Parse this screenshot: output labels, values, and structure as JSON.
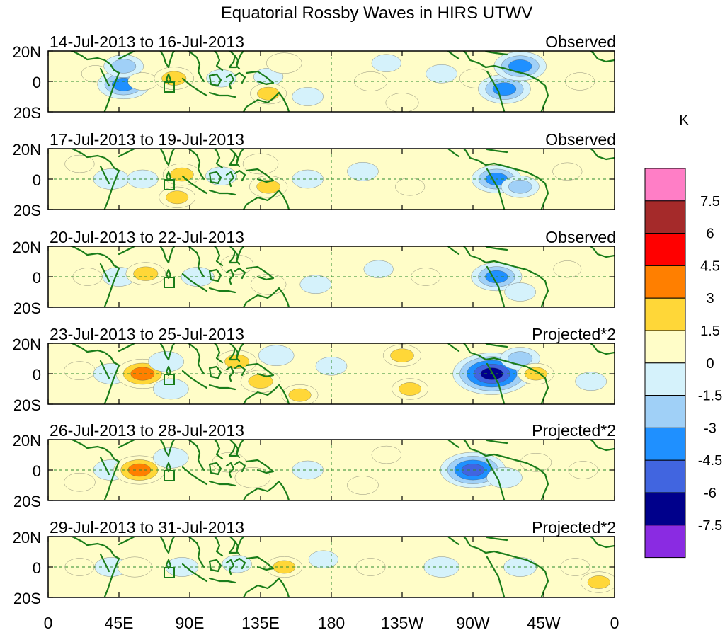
{
  "title": "Equatorial Rossby Waves in HIRS UTWV",
  "chart_data": {
    "type": "heatmap",
    "title": "Equatorial Rossby Waves in HIRS UTWV",
    "x_ticks": [
      "0",
      "45E",
      "90E",
      "135E",
      "180",
      "135W",
      "90W",
      "45W",
      "0"
    ],
    "y_ticks": [
      "20N",
      "0",
      "20S"
    ],
    "lat_range": [
      -20,
      20
    ],
    "lon_range": [
      0,
      360
    ],
    "colorbar": {
      "unit": "K",
      "levels": [
        "7.5",
        "6",
        "4.5",
        "3",
        "1.5",
        "0",
        "-1.5",
        "-3",
        "-4.5",
        "-6",
        "-7.5"
      ],
      "colors": [
        "#ff7ec6",
        "#a52a2a",
        "#ff0000",
        "#ff7f00",
        "#ffd738",
        "#fffdc8",
        "#d5f2fb",
        "#a0d0f7",
        "#1f90ff",
        "#4165e0",
        "#00008b",
        "#8a2be2"
      ]
    },
    "panels": [
      {
        "date_range": "14-Jul-2013 to 16-Jul-2013",
        "label": "Observed",
        "anomalies": [
          {
            "lon": 30,
            "lat": 5,
            "value": 0.6
          },
          {
            "lon": 48,
            "lat": -2,
            "value": -3.5
          },
          {
            "lon": 48,
            "lat": 10,
            "value": -2
          },
          {
            "lon": 60,
            "lat": 0,
            "value": 0.8
          },
          {
            "lon": 80,
            "lat": 2,
            "value": 2
          },
          {
            "lon": 110,
            "lat": 2,
            "value": -0.8
          },
          {
            "lon": 140,
            "lat": 3,
            "value": -0.8
          },
          {
            "lon": 150,
            "lat": 12,
            "value": 1.5
          },
          {
            "lon": 140,
            "lat": -8,
            "value": 1.6
          },
          {
            "lon": 165,
            "lat": -10,
            "value": -1
          },
          {
            "lon": 205,
            "lat": 0,
            "value": 1.2
          },
          {
            "lon": 215,
            "lat": 12,
            "value": -0.8
          },
          {
            "lon": 225,
            "lat": -14,
            "value": 1.2
          },
          {
            "lon": 250,
            "lat": 5,
            "value": -1
          },
          {
            "lon": 272,
            "lat": 2,
            "value": 1.2
          },
          {
            "lon": 290,
            "lat": -5,
            "value": -3.5
          },
          {
            "lon": 300,
            "lat": 10,
            "value": -3.5
          },
          {
            "lon": 338,
            "lat": 0,
            "value": 0.8
          }
        ]
      },
      {
        "date_range": "17-Jul-2013 to 19-Jul-2013",
        "label": "Observed",
        "anomalies": [
          {
            "lon": 20,
            "lat": 10,
            "value": 0.8
          },
          {
            "lon": 40,
            "lat": 0,
            "value": -1.5
          },
          {
            "lon": 60,
            "lat": 0,
            "value": -1
          },
          {
            "lon": 85,
            "lat": 3,
            "value": 1.8
          },
          {
            "lon": 82,
            "lat": -12,
            "value": 1.6
          },
          {
            "lon": 110,
            "lat": 2,
            "value": -1
          },
          {
            "lon": 135,
            "lat": 10,
            "value": 1.5
          },
          {
            "lon": 140,
            "lat": -5,
            "value": 1.8
          },
          {
            "lon": 165,
            "lat": 0,
            "value": -1
          },
          {
            "lon": 200,
            "lat": 5,
            "value": -1
          },
          {
            "lon": 230,
            "lat": -5,
            "value": 0.8
          },
          {
            "lon": 285,
            "lat": 0,
            "value": -3.2
          },
          {
            "lon": 300,
            "lat": -5,
            "value": -1.8
          },
          {
            "lon": 330,
            "lat": 5,
            "value": 0.8
          }
        ]
      },
      {
        "date_range": "20-Jul-2013 to 22-Jul-2013",
        "label": "Observed",
        "anomalies": [
          {
            "lon": 25,
            "lat": 0,
            "value": 0.8
          },
          {
            "lon": 45,
            "lat": 0,
            "value": -1.2
          },
          {
            "lon": 62,
            "lat": 2,
            "value": 2
          },
          {
            "lon": 95,
            "lat": 0,
            "value": -1.2
          },
          {
            "lon": 120,
            "lat": 8,
            "value": 1.2
          },
          {
            "lon": 140,
            "lat": -5,
            "value": 1.5
          },
          {
            "lon": 170,
            "lat": -5,
            "value": -1
          },
          {
            "lon": 210,
            "lat": 5,
            "value": -0.8
          },
          {
            "lon": 240,
            "lat": 0,
            "value": 0.8
          },
          {
            "lon": 285,
            "lat": 0,
            "value": -3.3
          },
          {
            "lon": 300,
            "lat": -10,
            "value": -1
          },
          {
            "lon": 330,
            "lat": 5,
            "value": 0.6
          }
        ]
      },
      {
        "date_range": "23-Jul-2013 to 25-Jul-2013",
        "label": "Projected*2",
        "anomalies": [
          {
            "lon": 20,
            "lat": 2,
            "value": 1
          },
          {
            "lon": 40,
            "lat": 0,
            "value": -1.5
          },
          {
            "lon": 60,
            "lat": 0,
            "value": 3.6
          },
          {
            "lon": 75,
            "lat": 8,
            "value": -1.5
          },
          {
            "lon": 78,
            "lat": -10,
            "value": -1.5
          },
          {
            "lon": 120,
            "lat": 8,
            "value": 2
          },
          {
            "lon": 135,
            "lat": -5,
            "value": 2
          },
          {
            "lon": 145,
            "lat": 12,
            "value": -1.5
          },
          {
            "lon": 160,
            "lat": -14,
            "value": 1.6
          },
          {
            "lon": 180,
            "lat": 5,
            "value": -1
          },
          {
            "lon": 225,
            "lat": 12,
            "value": 1.8
          },
          {
            "lon": 230,
            "lat": -10,
            "value": 1.6
          },
          {
            "lon": 282,
            "lat": 0,
            "value": -6.5
          },
          {
            "lon": 300,
            "lat": 10,
            "value": -2
          },
          {
            "lon": 310,
            "lat": 0,
            "value": 1.6
          },
          {
            "lon": 345,
            "lat": -5,
            "value": -1
          }
        ]
      },
      {
        "date_range": "26-Jul-2013 to 28-Jul-2013",
        "label": "Projected*2",
        "anomalies": [
          {
            "lon": 20,
            "lat": -8,
            "value": 1
          },
          {
            "lon": 40,
            "lat": 0,
            "value": -1.5
          },
          {
            "lon": 58,
            "lat": 0,
            "value": 3.4
          },
          {
            "lon": 78,
            "lat": 8,
            "value": -1.5
          },
          {
            "lon": 115,
            "lat": 5,
            "value": 1.3
          },
          {
            "lon": 130,
            "lat": -5,
            "value": 1.5
          },
          {
            "lon": 165,
            "lat": 0,
            "value": -1
          },
          {
            "lon": 200,
            "lat": -10,
            "value": 1
          },
          {
            "lon": 215,
            "lat": 10,
            "value": 0.8
          },
          {
            "lon": 270,
            "lat": 0,
            "value": -5
          },
          {
            "lon": 290,
            "lat": -5,
            "value": -1.5
          },
          {
            "lon": 310,
            "lat": 5,
            "value": 1
          },
          {
            "lon": 340,
            "lat": 0,
            "value": 0.8
          }
        ]
      },
      {
        "date_range": "29-Jul-2013 to 31-Jul-2013",
        "label": "Projected*2",
        "anomalies": [
          {
            "lon": 20,
            "lat": 0,
            "value": 0.8
          },
          {
            "lon": 40,
            "lat": 0,
            "value": -1.2
          },
          {
            "lon": 55,
            "lat": 0,
            "value": 1.4
          },
          {
            "lon": 85,
            "lat": 0,
            "value": -1.2
          },
          {
            "lon": 120,
            "lat": 2,
            "value": -0.8
          },
          {
            "lon": 150,
            "lat": 0,
            "value": 1.6
          },
          {
            "lon": 175,
            "lat": 5,
            "value": -0.8
          },
          {
            "lon": 205,
            "lat": 0,
            "value": 0.8
          },
          {
            "lon": 250,
            "lat": 0,
            "value": -1.5
          },
          {
            "lon": 300,
            "lat": 0,
            "value": -1.2
          },
          {
            "lon": 335,
            "lat": 0,
            "value": 0.8
          },
          {
            "lon": 350,
            "lat": -10,
            "value": 1.6
          }
        ]
      }
    ]
  }
}
